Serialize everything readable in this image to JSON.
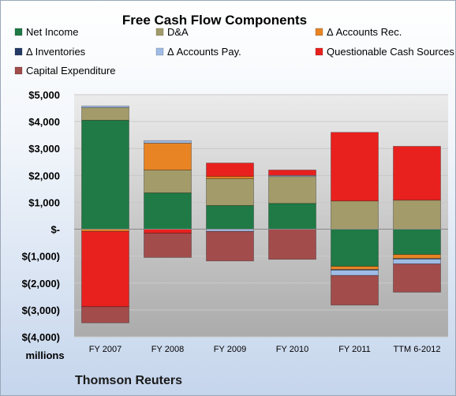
{
  "chart_data": {
    "type": "bar",
    "stacked": true,
    "title": "Free Cash Flow Components",
    "ylabel": "millions",
    "source_label": "Thomson Reuters",
    "categories": [
      "FY 2007",
      "FY 2008",
      "FY 2009",
      "FY 2010",
      "FY 2011",
      "TTM 6-2012"
    ],
    "ylim": [
      -4000,
      5000
    ],
    "yticks": [
      {
        "value": 5000,
        "label": "$5,000"
      },
      {
        "value": 4000,
        "label": "$4,000"
      },
      {
        "value": 3000,
        "label": "$3,000"
      },
      {
        "value": 2000,
        "label": "$2,000"
      },
      {
        "value": 1000,
        "label": "$1,000"
      },
      {
        "value": 0,
        "label": "$-"
      },
      {
        "value": -1000,
        "label": "$(1,000)"
      },
      {
        "value": -2000,
        "label": "$(2,000)"
      },
      {
        "value": -3000,
        "label": "$(3,000)"
      },
      {
        "value": -4000,
        "label": "$(4,000)"
      }
    ],
    "grid": true,
    "legend_position": "top",
    "series": [
      {
        "name": "Net Income",
        "color": "#1f7a45",
        "values": [
          4050,
          1350,
          880,
          960,
          -1380,
          -940
        ]
      },
      {
        "name": "D&A",
        "color": "#a39b6a",
        "values": [
          470,
          850,
          1000,
          1000,
          1050,
          1080
        ]
      },
      {
        "name": "Δ Accounts Rec.",
        "color": "#e88424",
        "values": [
          -80,
          1000,
          80,
          0,
          -120,
          -150
        ]
      },
      {
        "name": "Δ Inventories",
        "color": "#243a66",
        "values": [
          0,
          0,
          0,
          0,
          -20,
          -20
        ]
      },
      {
        "name": "Δ Accounts Pay.",
        "color": "#9fbce6",
        "values": [
          60,
          90,
          -80,
          40,
          -200,
          -180
        ]
      },
      {
        "name": "Questionable Cash Sources",
        "color": "#e8211e",
        "values": [
          -2800,
          -150,
          500,
          200,
          2550,
          2000
        ]
      },
      {
        "name": "Capital Expenditure",
        "color": "#a24c4c",
        "values": [
          -600,
          -900,
          -1100,
          -1120,
          -1100,
          -1050
        ]
      }
    ]
  }
}
